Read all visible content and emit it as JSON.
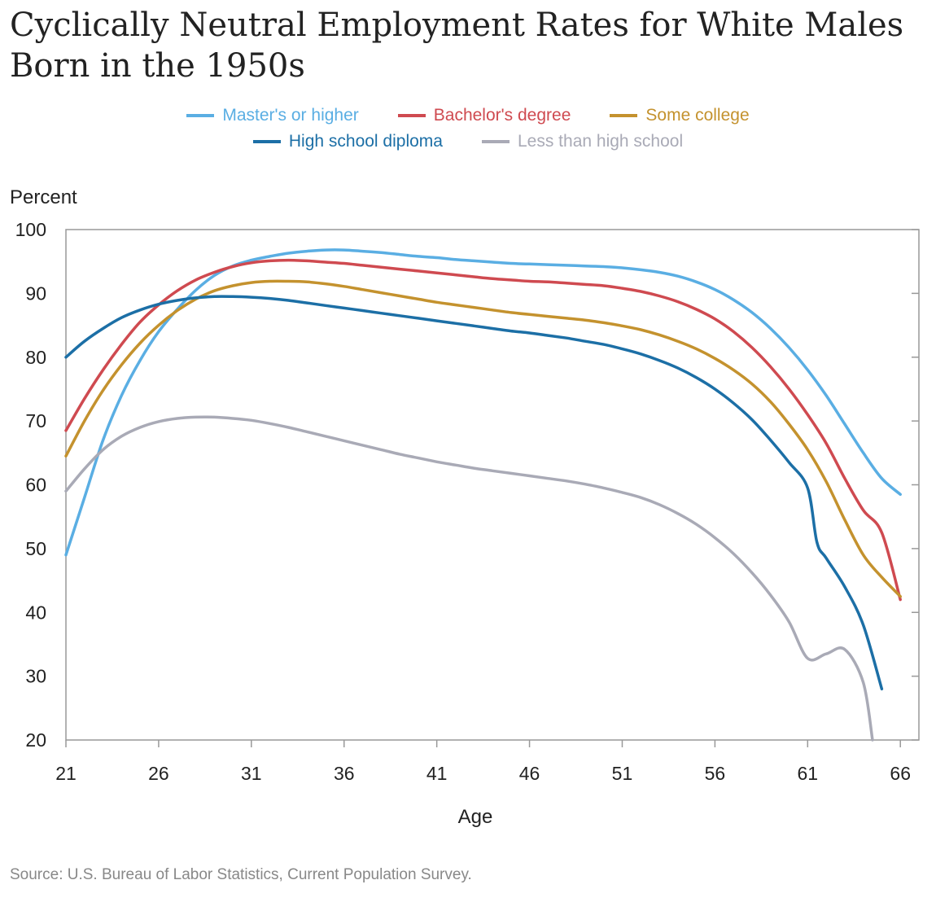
{
  "title": "Cyclically Neutral Employment Rates for White Males Born in the 1950s",
  "source": "Source: U.S. Bureau of Labor Statistics, Current Population Survey.",
  "legend": {
    "row1": [
      "Master's or higher",
      "Bachelor's degree",
      "Some college"
    ],
    "row2": [
      "High school diploma",
      "Less than high school"
    ]
  },
  "chart_data": {
    "type": "line",
    "title": "Cyclically Neutral Employment Rates for White Males Born in the 1950s",
    "xlabel": "Age",
    "ylabel": "Percent",
    "xlim": [
      21,
      67
    ],
    "ylim": [
      20,
      100
    ],
    "x_ticks": [
      21,
      26,
      31,
      36,
      41,
      46,
      51,
      56,
      61,
      66
    ],
    "y_ticks": [
      20,
      30,
      40,
      50,
      60,
      70,
      80,
      90,
      100
    ],
    "grid": false,
    "legend_position": "top",
    "series": [
      {
        "name": "Master's or higher",
        "color": "#5aaee3",
        "points": [
          [
            21,
            49
          ],
          [
            22,
            58
          ],
          [
            23,
            67
          ],
          [
            24,
            74
          ],
          [
            25,
            79.5
          ],
          [
            26,
            84
          ],
          [
            27,
            87.5
          ],
          [
            28,
            90.5
          ],
          [
            29,
            92.8
          ],
          [
            30,
            94.3
          ],
          [
            31,
            95.2
          ],
          [
            32,
            95.8
          ],
          [
            33,
            96.3
          ],
          [
            34,
            96.6
          ],
          [
            35,
            96.8
          ],
          [
            36,
            96.8
          ],
          [
            37,
            96.6
          ],
          [
            38,
            96.4
          ],
          [
            39,
            96.1
          ],
          [
            40,
            95.8
          ],
          [
            41,
            95.6
          ],
          [
            42,
            95.3
          ],
          [
            43,
            95.1
          ],
          [
            44,
            94.9
          ],
          [
            45,
            94.7
          ],
          [
            46,
            94.6
          ],
          [
            47,
            94.5
          ],
          [
            48,
            94.4
          ],
          [
            49,
            94.3
          ],
          [
            50,
            94.2
          ],
          [
            51,
            94
          ],
          [
            52,
            93.7
          ],
          [
            53,
            93.3
          ],
          [
            54,
            92.7
          ],
          [
            55,
            91.8
          ],
          [
            56,
            90.6
          ],
          [
            57,
            89
          ],
          [
            58,
            87
          ],
          [
            59,
            84.5
          ],
          [
            60,
            81.5
          ],
          [
            61,
            78
          ],
          [
            62,
            74
          ],
          [
            63,
            69.5
          ],
          [
            64,
            65
          ],
          [
            65,
            61
          ],
          [
            66,
            58.5
          ]
        ]
      },
      {
        "name": "Bachelor's degree",
        "color": "#cf4a50",
        "points": [
          [
            21,
            68.5
          ],
          [
            22,
            73.5
          ],
          [
            23,
            78
          ],
          [
            24,
            82
          ],
          [
            25,
            85.5
          ],
          [
            26,
            88.2
          ],
          [
            27,
            90.4
          ],
          [
            28,
            92.1
          ],
          [
            29,
            93.3
          ],
          [
            30,
            94.2
          ],
          [
            31,
            94.8
          ],
          [
            32,
            95.1
          ],
          [
            33,
            95.2
          ],
          [
            34,
            95.1
          ],
          [
            35,
            94.9
          ],
          [
            36,
            94.7
          ],
          [
            37,
            94.4
          ],
          [
            38,
            94.1
          ],
          [
            39,
            93.8
          ],
          [
            40,
            93.5
          ],
          [
            41,
            93.2
          ],
          [
            42,
            92.9
          ],
          [
            43,
            92.6
          ],
          [
            44,
            92.3
          ],
          [
            45,
            92.1
          ],
          [
            46,
            91.9
          ],
          [
            47,
            91.8
          ],
          [
            48,
            91.6
          ],
          [
            49,
            91.4
          ],
          [
            50,
            91.2
          ],
          [
            51,
            90.8
          ],
          [
            52,
            90.3
          ],
          [
            53,
            89.6
          ],
          [
            54,
            88.7
          ],
          [
            55,
            87.5
          ],
          [
            56,
            86
          ],
          [
            57,
            84
          ],
          [
            58,
            81.5
          ],
          [
            59,
            78.5
          ],
          [
            60,
            75
          ],
          [
            61,
            71
          ],
          [
            62,
            66.5
          ],
          [
            63,
            61
          ],
          [
            64,
            56
          ],
          [
            65,
            52.5
          ],
          [
            66,
            42
          ]
        ]
      },
      {
        "name": "Some college",
        "color": "#c4922e",
        "points": [
          [
            21,
            64.5
          ],
          [
            22,
            70
          ],
          [
            23,
            74.8
          ],
          [
            24,
            78.8
          ],
          [
            25,
            82.2
          ],
          [
            26,
            85
          ],
          [
            27,
            87.3
          ],
          [
            28,
            89.1
          ],
          [
            29,
            90.4
          ],
          [
            30,
            91.2
          ],
          [
            31,
            91.7
          ],
          [
            32,
            91.9
          ],
          [
            33,
            91.9
          ],
          [
            34,
            91.8
          ],
          [
            35,
            91.5
          ],
          [
            36,
            91.1
          ],
          [
            37,
            90.6
          ],
          [
            38,
            90.1
          ],
          [
            39,
            89.6
          ],
          [
            40,
            89.1
          ],
          [
            41,
            88.6
          ],
          [
            42,
            88.2
          ],
          [
            43,
            87.8
          ],
          [
            44,
            87.4
          ],
          [
            45,
            87
          ],
          [
            46,
            86.7
          ],
          [
            47,
            86.4
          ],
          [
            48,
            86.1
          ],
          [
            49,
            85.8
          ],
          [
            50,
            85.4
          ],
          [
            51,
            84.9
          ],
          [
            52,
            84.3
          ],
          [
            53,
            83.5
          ],
          [
            54,
            82.5
          ],
          [
            55,
            81.3
          ],
          [
            56,
            79.8
          ],
          [
            57,
            78
          ],
          [
            58,
            75.8
          ],
          [
            59,
            73
          ],
          [
            60,
            69.5
          ],
          [
            61,
            65.5
          ],
          [
            62,
            60.5
          ],
          [
            63,
            54.5
          ],
          [
            64,
            49
          ],
          [
            65,
            45.5
          ],
          [
            66,
            42.5
          ]
        ]
      },
      {
        "name": "High school diploma",
        "color": "#1c6fa6",
        "points": [
          [
            21,
            80
          ],
          [
            22,
            82.5
          ],
          [
            23,
            84.5
          ],
          [
            24,
            86.2
          ],
          [
            25,
            87.4
          ],
          [
            26,
            88.3
          ],
          [
            27,
            88.9
          ],
          [
            28,
            89.3
          ],
          [
            29,
            89.5
          ],
          [
            30,
            89.5
          ],
          [
            31,
            89.4
          ],
          [
            32,
            89.2
          ],
          [
            33,
            88.9
          ],
          [
            34,
            88.5
          ],
          [
            35,
            88.1
          ],
          [
            36,
            87.7
          ],
          [
            37,
            87.3
          ],
          [
            38,
            86.9
          ],
          [
            39,
            86.5
          ],
          [
            40,
            86.1
          ],
          [
            41,
            85.7
          ],
          [
            42,
            85.3
          ],
          [
            43,
            84.9
          ],
          [
            44,
            84.5
          ],
          [
            45,
            84.1
          ],
          [
            46,
            83.8
          ],
          [
            47,
            83.4
          ],
          [
            48,
            83
          ],
          [
            49,
            82.5
          ],
          [
            50,
            82
          ],
          [
            51,
            81.3
          ],
          [
            52,
            80.5
          ],
          [
            53,
            79.5
          ],
          [
            54,
            78.3
          ],
          [
            55,
            76.8
          ],
          [
            56,
            75
          ],
          [
            57,
            72.8
          ],
          [
            58,
            70.2
          ],
          [
            59,
            67
          ],
          [
            60,
            63.5
          ],
          [
            61,
            59.5
          ],
          [
            61.5,
            51
          ],
          [
            62,
            48.5
          ],
          [
            63,
            44
          ],
          [
            64,
            38
          ],
          [
            65,
            28
          ]
        ]
      },
      {
        "name": "Less than high school",
        "color": "#a9aab6",
        "points": [
          [
            21,
            59
          ],
          [
            22,
            62.5
          ],
          [
            23,
            65.5
          ],
          [
            24,
            67.6
          ],
          [
            25,
            69
          ],
          [
            26,
            69.9
          ],
          [
            27,
            70.4
          ],
          [
            28,
            70.6
          ],
          [
            29,
            70.6
          ],
          [
            30,
            70.4
          ],
          [
            31,
            70.1
          ],
          [
            32,
            69.6
          ],
          [
            33,
            69
          ],
          [
            34,
            68.3
          ],
          [
            35,
            67.6
          ],
          [
            36,
            66.9
          ],
          [
            37,
            66.2
          ],
          [
            38,
            65.5
          ],
          [
            39,
            64.8
          ],
          [
            40,
            64.2
          ],
          [
            41,
            63.6
          ],
          [
            42,
            63.1
          ],
          [
            43,
            62.6
          ],
          [
            44,
            62.2
          ],
          [
            45,
            61.8
          ],
          [
            46,
            61.4
          ],
          [
            47,
            61
          ],
          [
            48,
            60.6
          ],
          [
            49,
            60.1
          ],
          [
            50,
            59.5
          ],
          [
            51,
            58.8
          ],
          [
            52,
            58
          ],
          [
            53,
            56.9
          ],
          [
            54,
            55.5
          ],
          [
            55,
            53.8
          ],
          [
            56,
            51.7
          ],
          [
            57,
            49.2
          ],
          [
            58,
            46.2
          ],
          [
            59,
            42.7
          ],
          [
            60,
            38.5
          ],
          [
            61,
            32.8
          ],
          [
            62,
            33.5
          ],
          [
            63,
            34.2
          ],
          [
            64,
            29
          ],
          [
            64.5,
            20
          ]
        ]
      }
    ]
  }
}
